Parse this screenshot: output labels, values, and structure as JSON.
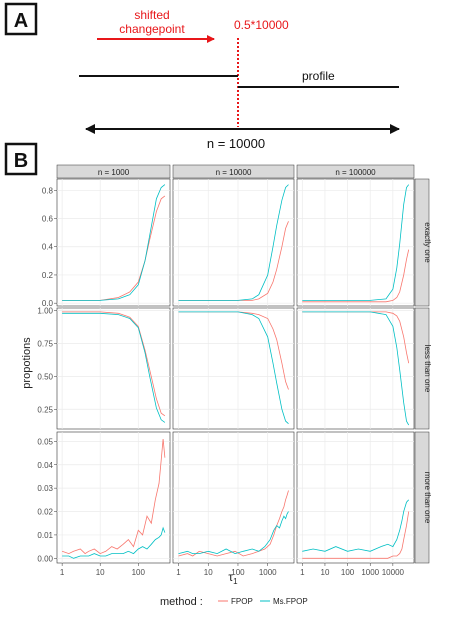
{
  "panelA": {
    "tag": "A",
    "shift_label_line1": "shifted",
    "shift_label_line2": "changepoint",
    "cp_label": "0.5*10000",
    "profile_label": "profile",
    "n_label": "n = 10000",
    "colors": {
      "red": "#e8171a",
      "black": "#111111"
    }
  },
  "panelB": {
    "tag": "B",
    "ylabel": "propotions",
    "xlabel": "τ",
    "xlabel_sub": "1",
    "legend_title": "method :",
    "legend": [
      {
        "name": "FPOP",
        "color": "#f8766d"
      },
      {
        "name": "Ms.FPOP",
        "color": "#00bfc4"
      }
    ],
    "col_strips": [
      "n = 1000",
      "n = 10000",
      "n = 100000"
    ],
    "row_strips": [
      "exactly one",
      "less than one",
      "more than one"
    ]
  },
  "chart_data": {
    "type": "line",
    "xscale": "log10",
    "x_ticks": [
      "1",
      "10",
      "100",
      "1000",
      "10000"
    ],
    "columns": [
      {
        "n": 1000,
        "xlim": [
          1,
          500
        ],
        "tick_labels": [
          "1",
          "10",
          "100"
        ]
      },
      {
        "n": 10000,
        "xlim": [
          1,
          5000
        ],
        "tick_labels": [
          "1",
          "10",
          "100",
          "1000"
        ]
      },
      {
        "n": 100000,
        "xlim": [
          1,
          50000
        ],
        "tick_labels": [
          "1",
          "10",
          "100",
          "1000",
          "10000"
        ]
      }
    ],
    "rows": [
      {
        "name": "exactly one",
        "ylim": [
          -0.02,
          0.88
        ],
        "yticks": [
          "0.0",
          "0.2",
          "0.4",
          "0.6",
          "0.8"
        ]
      },
      {
        "name": "less than one",
        "ylim": [
          0.1,
          1.02
        ],
        "yticks": [
          "0.25",
          "0.50",
          "0.75",
          "1.00"
        ]
      },
      {
        "name": "more than one",
        "ylim": [
          -0.002,
          0.054
        ],
        "yticks": [
          "0.00",
          "0.01",
          "0.02",
          "0.03",
          "0.04",
          "0.05"
        ]
      }
    ],
    "panels": [
      {
        "row": 0,
        "col": 0,
        "series": [
          {
            "name": "FPOP",
            "x": [
              1,
              10,
              30,
              60,
              100,
              150,
              200,
              300,
              400,
              500
            ],
            "y": [
              0.02,
              0.02,
              0.04,
              0.08,
              0.15,
              0.3,
              0.45,
              0.65,
              0.74,
              0.76
            ]
          },
          {
            "name": "Ms.FPOP",
            "x": [
              1,
              10,
              30,
              60,
              100,
              150,
              200,
              300,
              400,
              500
            ],
            "y": [
              0.02,
              0.02,
              0.03,
              0.06,
              0.13,
              0.3,
              0.48,
              0.74,
              0.82,
              0.84
            ]
          }
        ]
      },
      {
        "row": 0,
        "col": 1,
        "series": [
          {
            "name": "FPOP",
            "x": [
              1,
              100,
              300,
              500,
              1000,
              1500,
              2000,
              3000,
              4000,
              5000
            ],
            "y": [
              0.02,
              0.02,
              0.02,
              0.03,
              0.07,
              0.15,
              0.24,
              0.4,
              0.53,
              0.58
            ]
          },
          {
            "name": "Ms.FPOP",
            "x": [
              1,
              100,
              300,
              500,
              1000,
              1500,
              2000,
              3000,
              4000,
              5000
            ],
            "y": [
              0.02,
              0.02,
              0.03,
              0.06,
              0.2,
              0.4,
              0.55,
              0.73,
              0.82,
              0.84
            ]
          }
        ]
      },
      {
        "row": 0,
        "col": 2,
        "series": [
          {
            "name": "FPOP",
            "x": [
              1,
              1000,
              5000,
              10000,
              15000,
              20000,
              30000,
              40000,
              50000
            ],
            "y": [
              0.01,
              0.01,
              0.01,
              0.02,
              0.04,
              0.08,
              0.2,
              0.31,
              0.38
            ]
          },
          {
            "name": "Ms.FPOP",
            "x": [
              1,
              1000,
              5000,
              10000,
              15000,
              20000,
              30000,
              40000,
              50000
            ],
            "y": [
              0.02,
              0.02,
              0.03,
              0.1,
              0.25,
              0.42,
              0.7,
              0.82,
              0.84
            ]
          }
        ]
      },
      {
        "row": 1,
        "col": 0,
        "series": [
          {
            "name": "FPOP",
            "x": [
              1,
              10,
              30,
              60,
              100,
              150,
              200,
              300,
              400,
              500
            ],
            "y": [
              0.99,
              0.99,
              0.98,
              0.95,
              0.88,
              0.7,
              0.55,
              0.33,
              0.22,
              0.2
            ]
          },
          {
            "name": "Ms.FPOP",
            "x": [
              1,
              10,
              30,
              60,
              100,
              150,
              200,
              300,
              400,
              500
            ],
            "y": [
              0.98,
              0.98,
              0.97,
              0.94,
              0.87,
              0.68,
              0.5,
              0.26,
              0.17,
              0.15
            ]
          }
        ]
      },
      {
        "row": 1,
        "col": 1,
        "series": [
          {
            "name": "FPOP",
            "x": [
              1,
              100,
              300,
              500,
              1000,
              1500,
              2000,
              3000,
              4000,
              5000
            ],
            "y": [
              0.99,
              0.99,
              0.98,
              0.97,
              0.94,
              0.86,
              0.78,
              0.6,
              0.46,
              0.4
            ]
          },
          {
            "name": "Ms.FPOP",
            "x": [
              1,
              100,
              300,
              500,
              1000,
              1500,
              2000,
              3000,
              4000,
              5000
            ],
            "y": [
              0.99,
              0.99,
              0.97,
              0.94,
              0.8,
              0.6,
              0.45,
              0.25,
              0.16,
              0.14
            ]
          }
        ]
      },
      {
        "row": 1,
        "col": 2,
        "series": [
          {
            "name": "FPOP",
            "x": [
              1,
              1000,
              5000,
              10000,
              15000,
              20000,
              30000,
              40000,
              50000
            ],
            "y": [
              0.99,
              0.99,
              0.99,
              0.98,
              0.96,
              0.92,
              0.8,
              0.68,
              0.6
            ]
          },
          {
            "name": "Ms.FPOP",
            "x": [
              1,
              1000,
              5000,
              10000,
              15000,
              20000,
              30000,
              40000,
              50000
            ],
            "y": [
              0.99,
              0.99,
              0.97,
              0.88,
              0.72,
              0.55,
              0.3,
              0.16,
              0.13
            ]
          }
        ]
      },
      {
        "row": 2,
        "col": 0,
        "series": [
          {
            "name": "FPOP",
            "x": [
              1,
              1.5,
              2,
              3,
              4,
              5,
              7,
              10,
              14,
              20,
              28,
              40,
              55,
              75,
              100,
              130,
              170,
              220,
              280,
              350,
              400,
              450,
              500
            ],
            "y": [
              0.003,
              0.002,
              0.003,
              0.004,
              0.002,
              0.003,
              0.004,
              0.002,
              0.003,
              0.005,
              0.004,
              0.006,
              0.008,
              0.005,
              0.012,
              0.01,
              0.018,
              0.015,
              0.025,
              0.032,
              0.042,
              0.051,
              0.043
            ]
          },
          {
            "name": "Ms.FPOP",
            "x": [
              1,
              1.5,
              2,
              3,
              4,
              5,
              7,
              10,
              14,
              20,
              28,
              40,
              55,
              75,
              100,
              130,
              170,
              220,
              280,
              350,
              400,
              450,
              500
            ],
            "y": [
              0.001,
              0.001,
              0.0,
              0.001,
              0.001,
              0.001,
              0.002,
              0.001,
              0.001,
              0.002,
              0.002,
              0.002,
              0.003,
              0.002,
              0.004,
              0.005,
              0.004,
              0.006,
              0.008,
              0.009,
              0.01,
              0.013,
              0.011
            ]
          }
        ]
      },
      {
        "row": 2,
        "col": 1,
        "series": [
          {
            "name": "FPOP",
            "x": [
              1,
              2,
              3,
              5,
              10,
              20,
              40,
              80,
              150,
              300,
              500,
              800,
              1200,
              1600,
              2000,
              2500,
              3000,
              3500,
              4000,
              4500,
              5000
            ],
            "y": [
              0.001,
              0.002,
              0.001,
              0.003,
              0.002,
              0.001,
              0.002,
              0.003,
              0.001,
              0.002,
              0.003,
              0.004,
              0.006,
              0.01,
              0.014,
              0.017,
              0.02,
              0.022,
              0.025,
              0.027,
              0.029
            ]
          },
          {
            "name": "Ms.FPOP",
            "x": [
              1,
              2,
              3,
              5,
              10,
              20,
              40,
              80,
              150,
              300,
              500,
              800,
              1200,
              1600,
              2000,
              2500,
              3000,
              3500,
              4000,
              4500,
              5000
            ],
            "y": [
              0.002,
              0.003,
              0.002,
              0.002,
              0.003,
              0.002,
              0.004,
              0.002,
              0.003,
              0.004,
              0.003,
              0.005,
              0.008,
              0.012,
              0.014,
              0.013,
              0.016,
              0.018,
              0.017,
              0.019,
              0.02
            ]
          }
        ]
      },
      {
        "row": 2,
        "col": 2,
        "series": [
          {
            "name": "FPOP",
            "x": [
              1,
              10,
              100,
              1000,
              3000,
              6000,
              10000,
              15000,
              20000,
              25000,
              30000,
              40000,
              50000
            ],
            "y": [
              0.0,
              0.0,
              0.0,
              0.0,
              0.0,
              0.0,
              0.001,
              0.001,
              0.002,
              0.004,
              0.008,
              0.014,
              0.02
            ]
          },
          {
            "name": "Ms.FPOP",
            "x": [
              1,
              3,
              10,
              30,
              100,
              300,
              1000,
              3000,
              6000,
              10000,
              15000,
              20000,
              25000,
              30000,
              40000,
              50000
            ],
            "y": [
              0.003,
              0.004,
              0.003,
              0.005,
              0.003,
              0.004,
              0.003,
              0.005,
              0.006,
              0.005,
              0.008,
              0.012,
              0.016,
              0.02,
              0.024,
              0.025
            ]
          }
        ]
      }
    ]
  }
}
